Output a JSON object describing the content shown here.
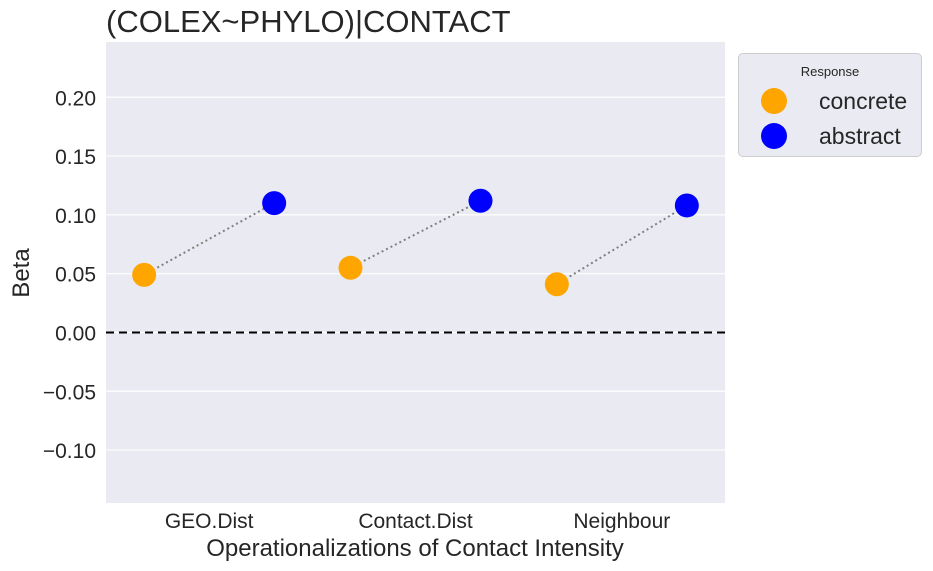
{
  "chart_data": {
    "type": "scatter",
    "title": "(COLEX~PHYLO)|CONTACT",
    "xlabel": "Operationalizations of Contact Intensity",
    "ylabel": "Beta",
    "categories": [
      "GEO.Dist",
      "Contact.Dist",
      "Neighbour"
    ],
    "ylim": [
      -0.145,
      0.247
    ],
    "yticks": [
      -0.1,
      -0.05,
      0.0,
      0.05,
      0.1,
      0.15,
      0.2
    ],
    "ytick_labels": [
      "−0.10",
      "−0.05",
      "0.00",
      "0.05",
      "0.10",
      "0.15",
      "0.20"
    ],
    "reference_line": 0.0,
    "grid": true,
    "legend": {
      "title": "Response",
      "placement": "outside-top-right"
    },
    "series": [
      {
        "name": "concrete",
        "color": "#FFA500",
        "values": [
          0.049,
          0.055,
          0.041
        ]
      },
      {
        "name": "abstract",
        "color": "#0000FF",
        "values": [
          0.11,
          0.112,
          0.108
        ]
      }
    ],
    "connector_style": "dotted",
    "connector_color": "#808080"
  }
}
